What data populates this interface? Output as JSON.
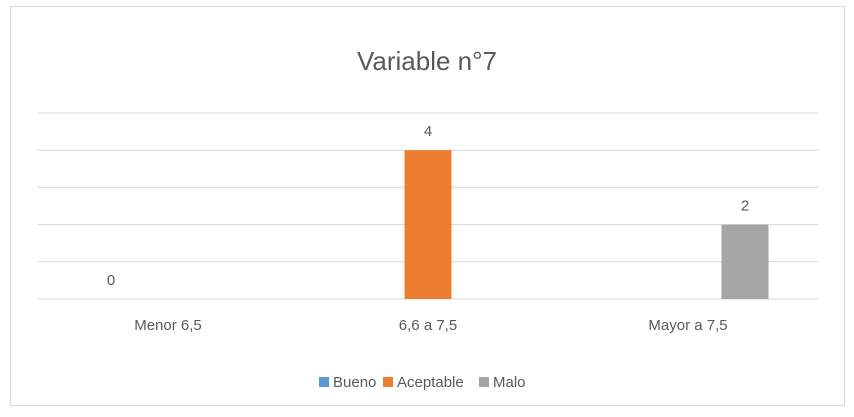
{
  "chart_data": {
    "type": "bar",
    "title": "Variable n°7",
    "categories": [
      "Menor 6,5",
      "6,6 a 7,5",
      "Mayor a 7,5"
    ],
    "series": [
      {
        "name": "Bueno",
        "color": "#5b9bd5",
        "values": [
          0,
          null,
          null
        ]
      },
      {
        "name": "Aceptable",
        "color": "#ed7d31",
        "values": [
          null,
          4,
          null
        ]
      },
      {
        "name": "Malo",
        "color": "#a5a5a5",
        "values": [
          null,
          null,
          2
        ]
      }
    ],
    "ylim": [
      0,
      5
    ],
    "yticks": [
      0,
      1,
      2,
      3,
      4,
      5
    ],
    "grid": true,
    "legend": "bottom"
  }
}
